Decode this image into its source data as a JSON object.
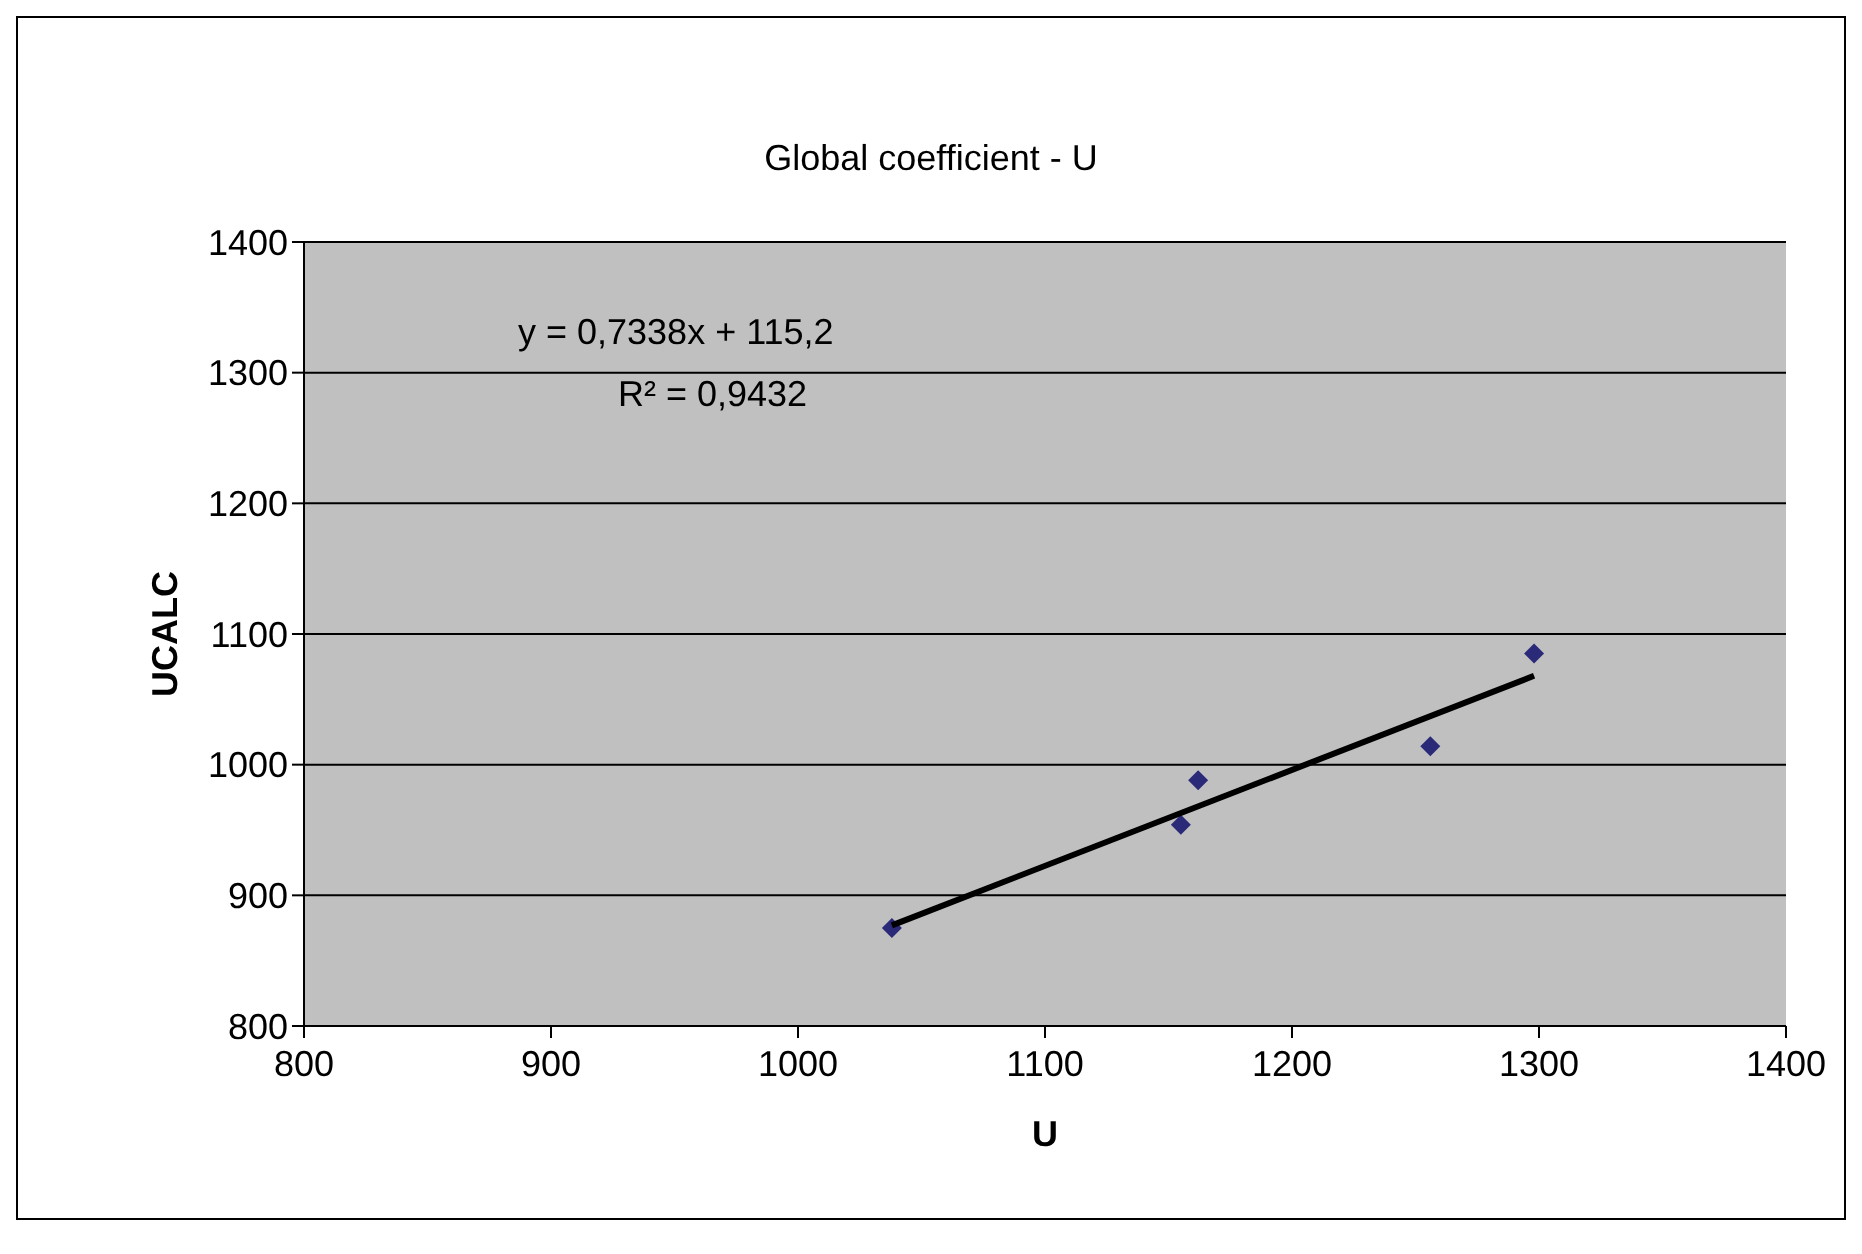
{
  "chart_data": {
    "type": "scatter",
    "title": "Global coefficient - U",
    "xlabel": "U",
    "ylabel": "UCALC",
    "xlim": [
      800,
      1400
    ],
    "xticks": [
      800,
      900,
      1000,
      1100,
      1200,
      1300,
      1400
    ],
    "ylim": [
      800,
      1400
    ],
    "yticks": [
      800,
      900,
      1000,
      1100,
      1200,
      1300,
      1400
    ],
    "grid": "y",
    "legend": false,
    "annotations": [
      "y = 0,7338x + 115,2",
      "R² = 0,9432"
    ],
    "series": [
      {
        "marker": "diamond",
        "color": "#2a2a78",
        "x": [
          1038,
          1155,
          1162,
          1256,
          1298
        ],
        "values": [
          875,
          954,
          988,
          1014,
          1085
        ]
      },
      {
        "type": "line",
        "color": "#000000",
        "x": [
          1038,
          1298
        ],
        "values": [
          877,
          1068
        ],
        "marker": "none"
      }
    ]
  }
}
